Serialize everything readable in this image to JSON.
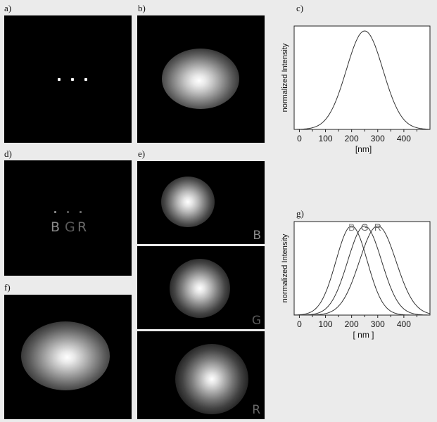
{
  "panel_labels": {
    "a": "a)",
    "b": "b)",
    "c": "c)",
    "d": "d)",
    "e": "e)",
    "f": "f)",
    "g": "g)"
  },
  "dots_d": {
    "B": "B",
    "G": "G",
    "R": "R"
  },
  "e_subpanels": [
    "B",
    "G",
    "R"
  ],
  "colors": {
    "B": "#8a8a8a",
    "G": "#6a6a6a",
    "R": "#6a6a6a"
  },
  "chart_data": [
    {
      "type": "line",
      "panel": "c)",
      "xlabel": "[nm]",
      "ylabel": "normalized Intensity",
      "xticks": [
        0,
        100,
        200,
        300,
        400
      ],
      "xlim": [
        -20,
        500
      ],
      "ylim": [
        0,
        1.05
      ],
      "series": [
        {
          "center": 250,
          "sigma": 70,
          "x": [
            0,
            50,
            100,
            150,
            200,
            250,
            300,
            350,
            400,
            450,
            480
          ],
          "y": [
            0.0,
            0.02,
            0.1,
            0.36,
            0.77,
            1.0,
            0.77,
            0.36,
            0.1,
            0.02,
            0.0
          ]
        }
      ]
    },
    {
      "type": "line",
      "panel": "g)",
      "xlabel": "[ nm ]",
      "ylabel": "normalized Intensity",
      "xticks": [
        0,
        100,
        200,
        300,
        400
      ],
      "xlim": [
        -20,
        500
      ],
      "ylim": [
        0,
        1.05
      ],
      "series": [
        {
          "name": "B",
          "center": 200,
          "sigma": 60,
          "x": [
            40,
            100,
            150,
            200,
            250,
            300,
            360
          ],
          "y": [
            0.03,
            0.25,
            0.71,
            1.0,
            0.71,
            0.25,
            0.03
          ]
        },
        {
          "name": "G",
          "center": 250,
          "sigma": 65,
          "x": [
            80,
            150,
            200,
            250,
            300,
            350,
            420
          ],
          "y": [
            0.03,
            0.31,
            0.74,
            1.0,
            0.74,
            0.31,
            0.03
          ]
        },
        {
          "name": "R",
          "center": 300,
          "sigma": 70,
          "x": [
            120,
            200,
            250,
            300,
            350,
            400,
            480
          ],
          "y": [
            0.04,
            0.36,
            0.77,
            1.0,
            0.77,
            0.36,
            0.04
          ]
        }
      ]
    }
  ]
}
